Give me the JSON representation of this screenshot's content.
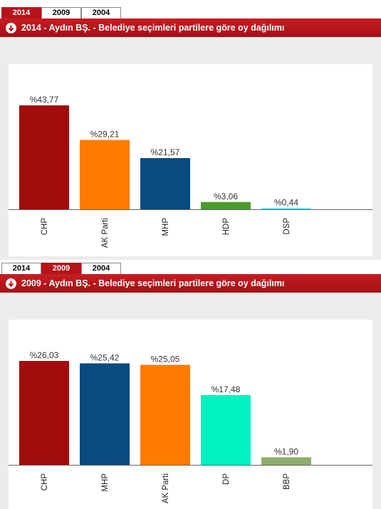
{
  "tabs": [
    "2014",
    "2009",
    "2004"
  ],
  "panels": [
    {
      "active_tab": 0,
      "title": "2014 - Aydın BŞ. - Belediye seçimleri partilere göre oy dağılımı",
      "chart_data": {
        "type": "bar",
        "categories": [
          "CHP",
          "AK Parti",
          "MHP",
          "HDP",
          "DSP"
        ],
        "values": [
          43.77,
          29.21,
          21.57,
          3.06,
          0.44
        ],
        "value_labels": [
          "%43,77",
          "%29,21",
          "%21,57",
          "%3,06",
          "%0,44"
        ],
        "colors": [
          "#a10c0c",
          "#ff7a00",
          "#0a4a80",
          "#4a9a2c",
          "#2ee4f4"
        ],
        "title": "2014 - Aydın BŞ. - Belediye seçimleri partilere göre oy dağılımı",
        "xlabel": "",
        "ylabel": "",
        "ylim": [
          0,
          43.77
        ],
        "grid": false
      }
    },
    {
      "active_tab": 1,
      "title": "2009 - Aydın BŞ. - Belediye seçimleri partilere göre oy dağılımı",
      "chart_data": {
        "type": "bar",
        "categories": [
          "CHP",
          "MHP",
          "AK Parti",
          "DP",
          "BBP"
        ],
        "values": [
          26.03,
          25.42,
          25.05,
          17.48,
          1.9
        ],
        "value_labels": [
          "%26,03",
          "%25,42",
          "%25,05",
          "%17,48",
          "%1,90"
        ],
        "colors": [
          "#a10c0c",
          "#0a4a80",
          "#ff7a00",
          "#00f2c0",
          "#8fae6a"
        ],
        "title": "2009 - Aydın BŞ. - Belediye seçimleri partilere göre oy dağılımı",
        "xlabel": "",
        "ylabel": "",
        "ylim": [
          0,
          26.03
        ],
        "grid": false
      }
    }
  ]
}
